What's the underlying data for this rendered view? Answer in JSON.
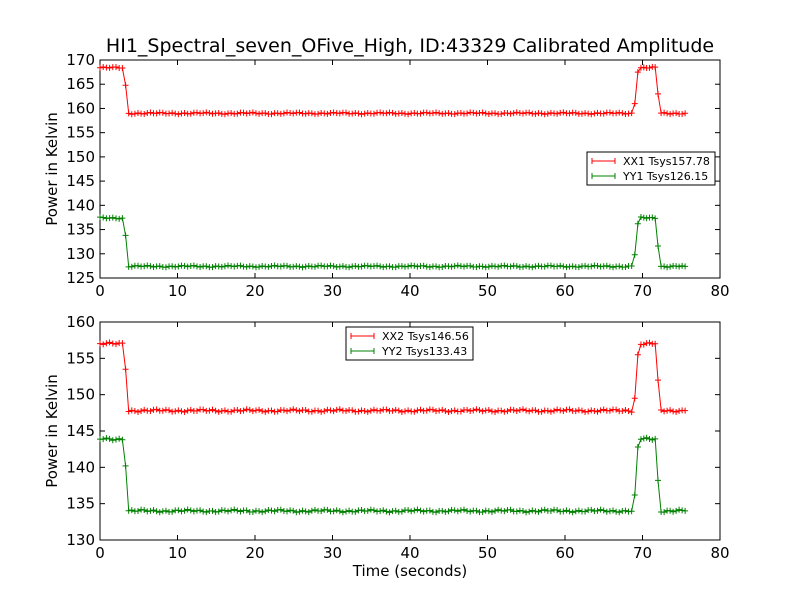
{
  "chart_data": [
    {
      "type": "line",
      "title": "HI1_Spectral_seven_OFive_High, ID:43329 Calibrated Amplitude",
      "xlabel": "",
      "ylabel": "Power in Kelvin",
      "xlim": [
        0,
        80
      ],
      "ylim": [
        125,
        170
      ],
      "xticks": [
        "0",
        "10",
        "20",
        "30",
        "40",
        "50",
        "60",
        "70",
        "80"
      ],
      "yticks": [
        "125",
        "130",
        "135",
        "140",
        "145",
        "150",
        "155",
        "160",
        "165",
        "170"
      ],
      "grid": false,
      "legend_position": "center-right",
      "series": [
        {
          "name": "XX1 Tsys157.78",
          "color": "#ff0000",
          "segments": [
            {
              "x": [
                0,
                3.3
              ],
              "y": 168.4
            },
            {
              "x": [
                3.3,
                3.7
              ],
              "y": 164.8
            },
            {
              "x": [
                3.7,
                69.0
              ],
              "y": 159.0
            },
            {
              "x": [
                69.0,
                69.4
              ],
              "y": 161.0
            },
            {
              "x": [
                69.4,
                69.8
              ],
              "y": 167.5
            },
            {
              "x": [
                69.8,
                72.0
              ],
              "y": 168.4
            },
            {
              "x": [
                72.0,
                72.4
              ],
              "y": 163.0
            },
            {
              "x": [
                72.4,
                75.5
              ],
              "y": 159.0
            }
          ]
        },
        {
          "name": "YY1 Tsys126.15",
          "color": "#008000",
          "segments": [
            {
              "x": [
                0,
                3.3
              ],
              "y": 137.4
            },
            {
              "x": [
                3.3,
                3.7
              ],
              "y": 133.8
            },
            {
              "x": [
                3.7,
                69.0
              ],
              "y": 127.4
            },
            {
              "x": [
                69.0,
                69.4
              ],
              "y": 129.8
            },
            {
              "x": [
                69.4,
                69.8
              ],
              "y": 136.2
            },
            {
              "x": [
                69.8,
                72.0
              ],
              "y": 137.4
            },
            {
              "x": [
                72.0,
                72.4
              ],
              "y": 131.6
            },
            {
              "x": [
                72.4,
                75.5
              ],
              "y": 127.4
            }
          ]
        }
      ]
    },
    {
      "type": "line",
      "title": "",
      "xlabel": "Time (seconds)",
      "ylabel": "Power in Kelvin",
      "xlim": [
        0,
        80
      ],
      "ylim": [
        130,
        160
      ],
      "xticks": [
        "0",
        "10",
        "20",
        "30",
        "40",
        "50",
        "60",
        "70",
        "80"
      ],
      "yticks": [
        "130",
        "135",
        "140",
        "145",
        "150",
        "155",
        "160"
      ],
      "grid": false,
      "legend_position": "upper-center",
      "series": [
        {
          "name": "XX2 Tsys146.56",
          "color": "#ff0000",
          "segments": [
            {
              "x": [
                0,
                3.3
              ],
              "y": 157.0
            },
            {
              "x": [
                3.3,
                3.7
              ],
              "y": 153.5
            },
            {
              "x": [
                3.7,
                69.0
              ],
              "y": 147.8
            },
            {
              "x": [
                69.0,
                69.4
              ],
              "y": 149.5
            },
            {
              "x": [
                69.4,
                69.8
              ],
              "y": 155.5
            },
            {
              "x": [
                69.8,
                72.0
              ],
              "y": 157.0
            },
            {
              "x": [
                72.0,
                72.4
              ],
              "y": 152.0
            },
            {
              "x": [
                72.4,
                75.5
              ],
              "y": 147.8
            }
          ]
        },
        {
          "name": "YY2 Tsys133.43",
          "color": "#008000",
          "segments": [
            {
              "x": [
                0,
                3.3
              ],
              "y": 143.9
            },
            {
              "x": [
                3.3,
                3.7
              ],
              "y": 140.2
            },
            {
              "x": [
                3.7,
                69.0
              ],
              "y": 134.0
            },
            {
              "x": [
                69.0,
                69.4
              ],
              "y": 136.2
            },
            {
              "x": [
                69.4,
                69.8
              ],
              "y": 142.8
            },
            {
              "x": [
                69.8,
                72.0
              ],
              "y": 143.9
            },
            {
              "x": [
                72.0,
                72.4
              ],
              "y": 138.2
            },
            {
              "x": [
                72.4,
                75.5
              ],
              "y": 134.0
            }
          ]
        }
      ]
    }
  ]
}
